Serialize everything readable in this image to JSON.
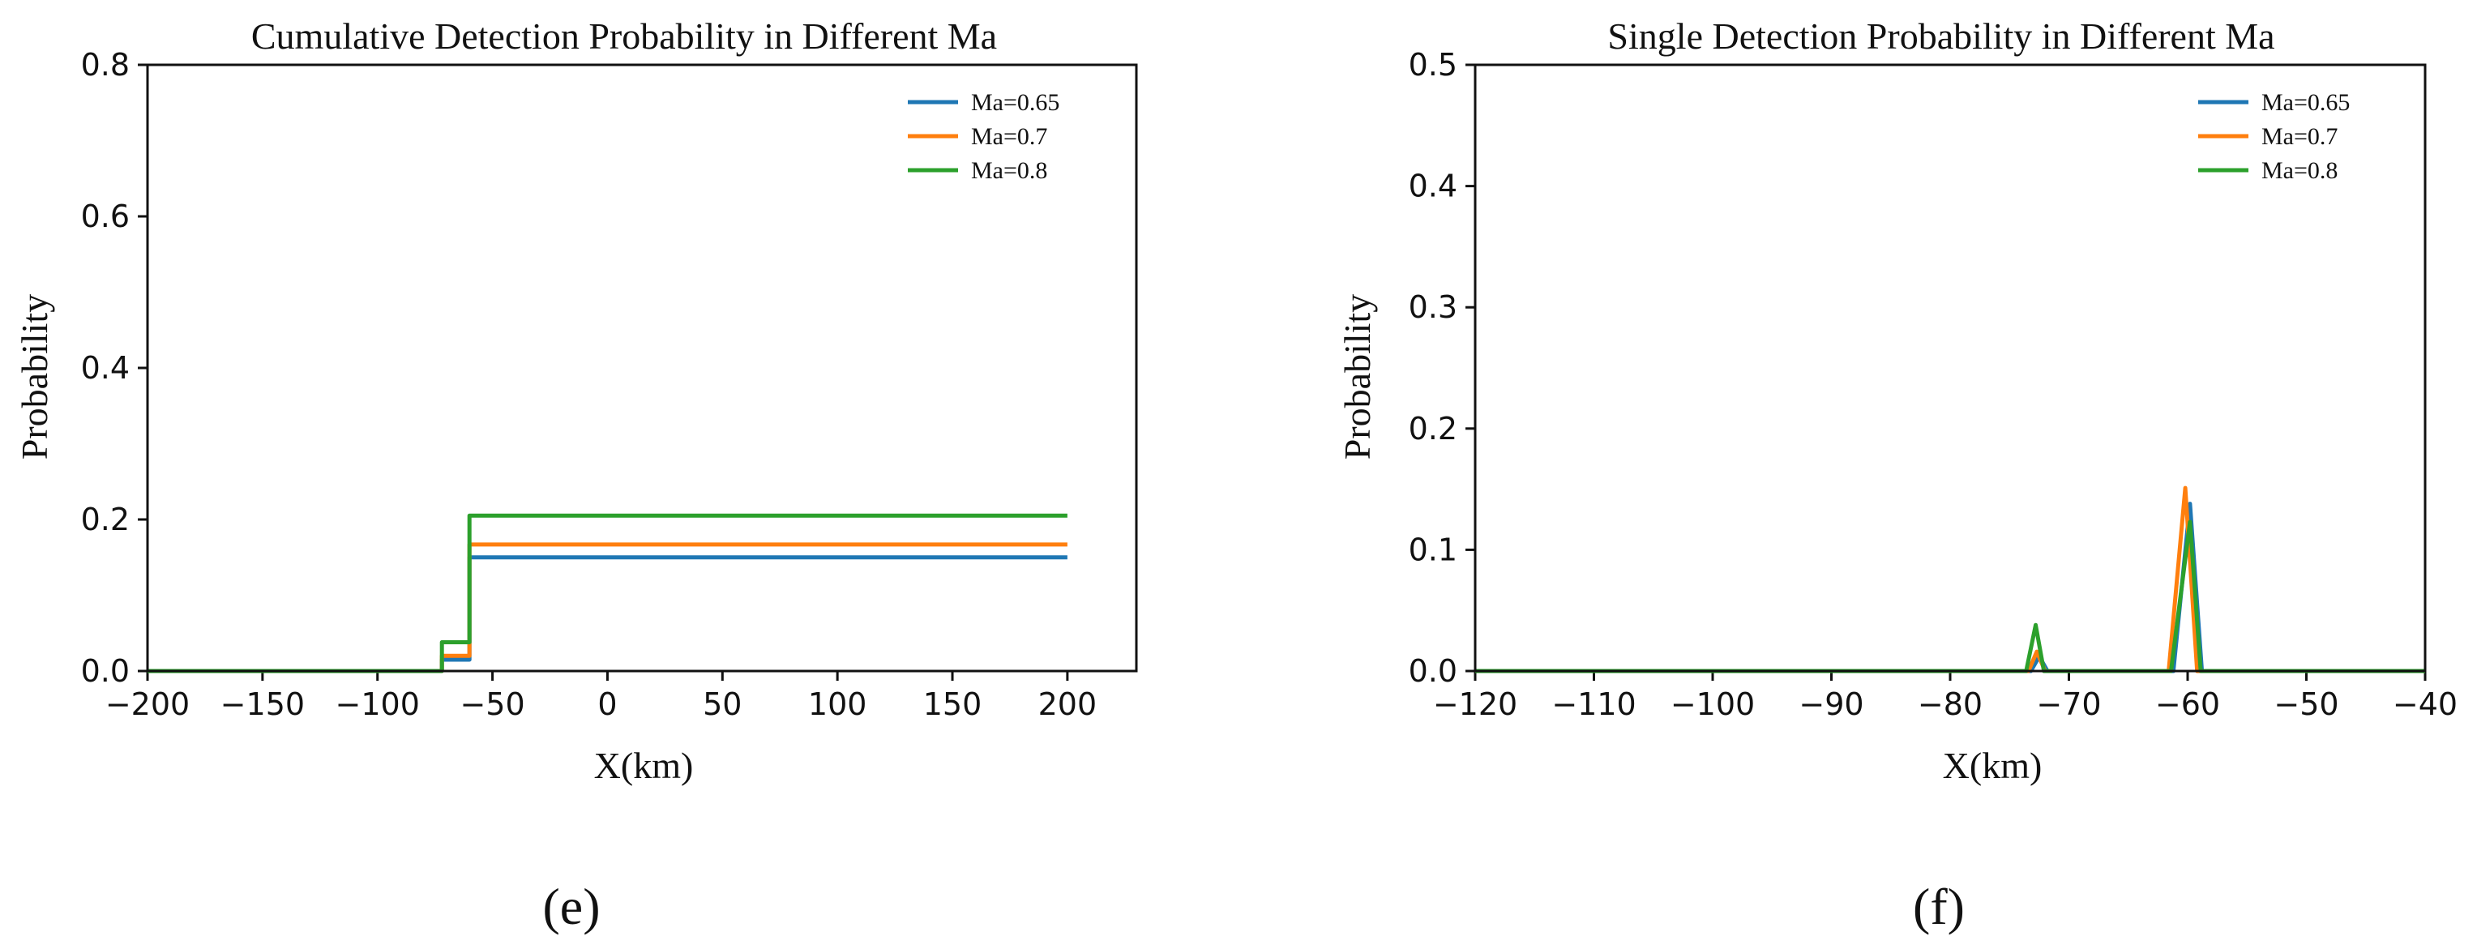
{
  "chart_data": [
    {
      "type": "line",
      "title": "Cumulative Detection Probability in Different Ma",
      "xlabel": "X(km)",
      "ylabel": "Probability",
      "xlim": [
        -200,
        230
      ],
      "ylim": [
        0,
        0.8
      ],
      "xticks": [
        -200,
        -150,
        -100,
        -50,
        0,
        50,
        100,
        150,
        200
      ],
      "xtick_labels": [
        "−200",
        "−150",
        "−100",
        "−50",
        "0",
        "50",
        "100",
        "150",
        "200"
      ],
      "yticks": [
        0.0,
        0.2,
        0.4,
        0.6,
        0.8
      ],
      "ytick_labels": [
        "0.0",
        "0.2",
        "0.4",
        "0.6",
        "0.8"
      ],
      "legend_position": "top-right",
      "caption": "(e)",
      "series": [
        {
          "name": "Ma=0.65",
          "color": "#1f77b4",
          "x": [
            -200,
            -72,
            -72,
            -60,
            -60,
            200
          ],
          "y": [
            0,
            0,
            0.015,
            0.015,
            0.15,
            0.15
          ]
        },
        {
          "name": "Ma=0.7",
          "color": "#ff7f0e",
          "x": [
            -200,
            -72,
            -72,
            -60,
            -60,
            200
          ],
          "y": [
            0,
            0,
            0.02,
            0.02,
            0.167,
            0.167
          ]
        },
        {
          "name": "Ma=0.8",
          "color": "#2ca02c",
          "x": [
            -200,
            -72,
            -72,
            -60,
            -60,
            200
          ],
          "y": [
            0,
            0,
            0.038,
            0.038,
            0.205,
            0.205
          ]
        }
      ]
    },
    {
      "type": "line",
      "title": "Single Detection Probability in Different Ma",
      "xlabel": "X(km)",
      "ylabel": "Probability",
      "xlim": [
        -120,
        -40
      ],
      "ylim": [
        0,
        0.5
      ],
      "xticks": [
        -120,
        -110,
        -100,
        -90,
        -80,
        -70,
        -60,
        -50,
        -40
      ],
      "xtick_labels": [
        "−120",
        "−110",
        "−100",
        "−90",
        "−80",
        "−70",
        "−60",
        "−50",
        "−40"
      ],
      "yticks": [
        0.0,
        0.1,
        0.2,
        0.3,
        0.4,
        0.5
      ],
      "ytick_labels": [
        "0.0",
        "0.1",
        "0.2",
        "0.3",
        "0.4",
        "0.5"
      ],
      "legend_position": "top-right",
      "caption": "(f)",
      "series": [
        {
          "name": "Ma=0.65",
          "color": "#1f77b4",
          "x": [
            -120,
            -73.2,
            -72.5,
            -71.8,
            -61.2,
            -59.8,
            -58.8,
            -40
          ],
          "y": [
            0,
            0,
            0.012,
            0,
            0,
            0.138,
            0,
            0
          ]
        },
        {
          "name": "Ma=0.7",
          "color": "#ff7f0e",
          "x": [
            -120,
            -73.4,
            -72.7,
            -72.0,
            -61.6,
            -60.2,
            -59.2,
            -40
          ],
          "y": [
            0,
            0,
            0.016,
            0,
            0,
            0.151,
            0,
            0
          ]
        },
        {
          "name": "Ma=0.8",
          "color": "#2ca02c",
          "x": [
            -120,
            -73.6,
            -72.8,
            -72.1,
            -61.4,
            -59.8,
            -58.9,
            -40
          ],
          "y": [
            0,
            0,
            0.038,
            0,
            0,
            0.123,
            0,
            0
          ]
        }
      ]
    }
  ]
}
